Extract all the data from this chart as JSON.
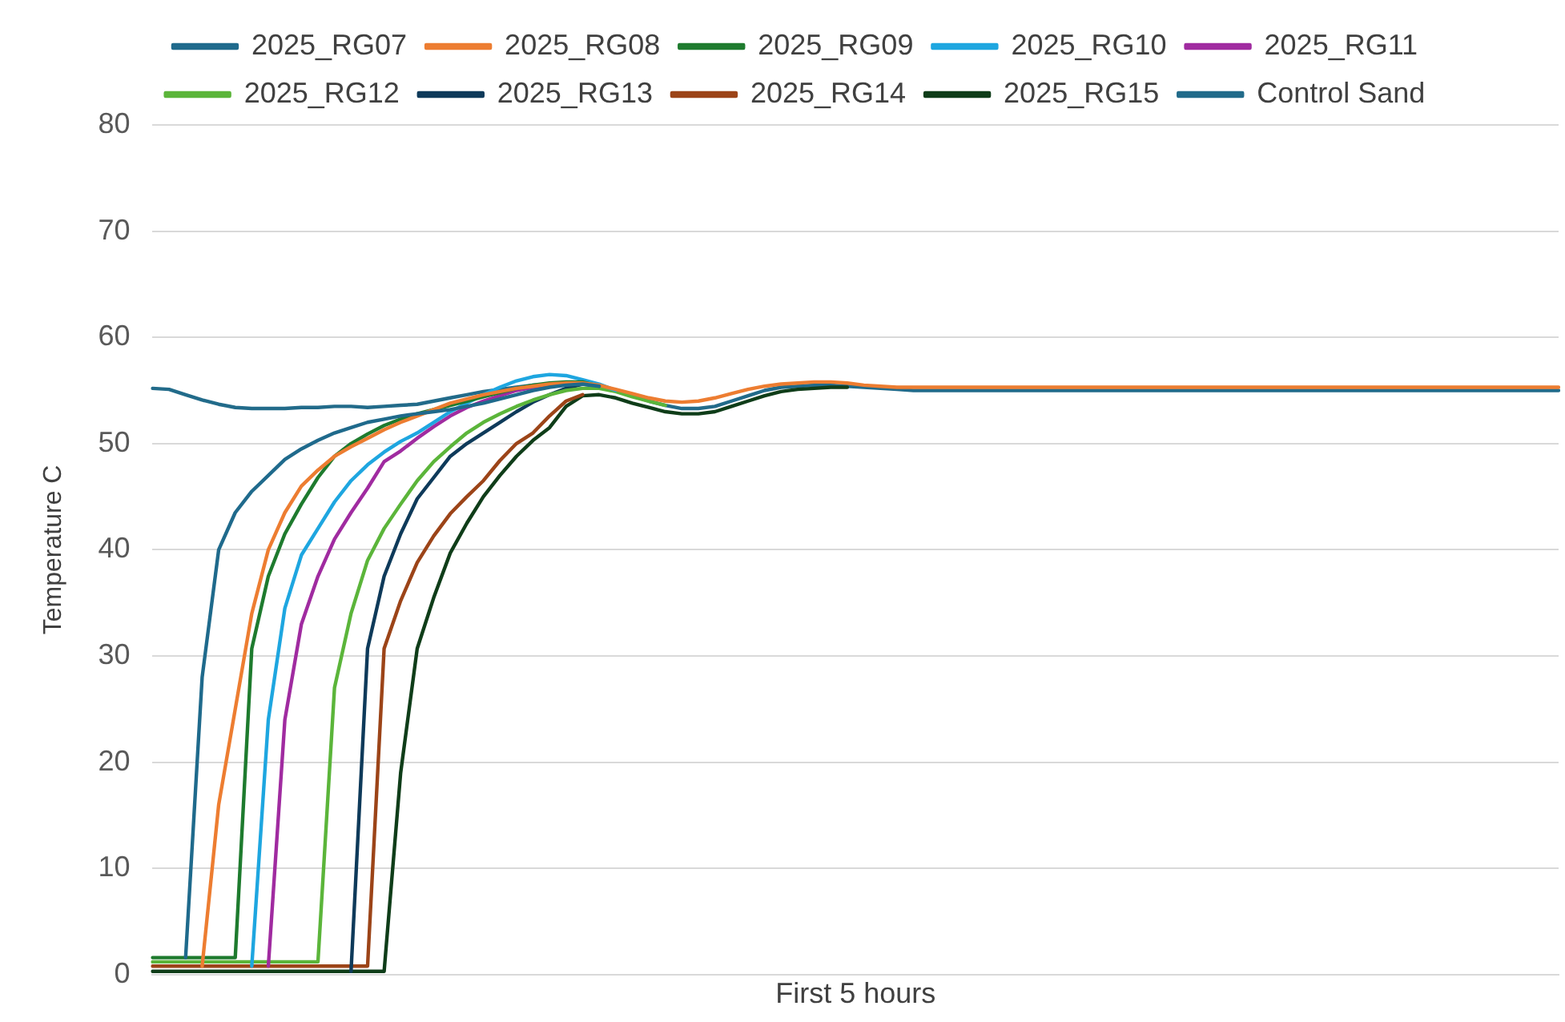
{
  "chart_data": {
    "type": "line",
    "xlabel": "First 5 hours",
    "ylabel": "Temperature C",
    "categories": [
      null,
      null,
      null,
      null,
      null,
      null,
      null,
      null,
      null,
      null,
      null,
      null,
      null,
      null,
      null,
      null,
      null,
      null,
      null,
      null,
      null,
      null,
      null,
      null,
      null,
      null,
      null,
      null,
      null,
      null,
      null,
      null,
      null,
      null,
      null,
      null,
      null,
      null,
      null,
      null,
      null,
      null,
      null,
      null,
      null,
      null,
      null,
      null,
      null,
      null,
      null,
      null,
      null,
      null,
      null,
      null,
      null,
      null,
      null,
      null,
      null,
      null,
      null,
      null,
      null,
      null,
      null,
      null,
      null,
      null,
      null,
      null,
      null,
      null,
      null,
      null,
      null,
      null,
      null,
      null,
      null,
      null,
      null,
      null,
      null,
      null
    ],
    "ylim": [
      0,
      80
    ],
    "yticks": [
      0,
      10,
      20,
      30,
      40,
      50,
      60,
      70,
      80
    ],
    "grid": "y",
    "legend": "top",
    "marker": "none",
    "line_style": "solid",
    "series": [
      {
        "name": "2025_RG07",
        "color": "#1f6a8c",
        "values": [
          null,
          null,
          1.6,
          28,
          40,
          43.5,
          45.5,
          47,
          48.5,
          49.5,
          50.3,
          51,
          51.5,
          52,
          52.3,
          52.6,
          52.8,
          53,
          53.2,
          53.5,
          53.8,
          54.2,
          54.6,
          55,
          55.3,
          55.5,
          55.6,
          55.4,
          null,
          null,
          null,
          null,
          null,
          null,
          null,
          null,
          null,
          null,
          null,
          null,
          null,
          null,
          null,
          null,
          null,
          null,
          null,
          null,
          null,
          null,
          null,
          null,
          null,
          null,
          null,
          null,
          null,
          null,
          null,
          null,
          null,
          null,
          null,
          null,
          null,
          null,
          null,
          null,
          null,
          null,
          null,
          null,
          null,
          null,
          null,
          null,
          null,
          null,
          null,
          null,
          null,
          null,
          null,
          null,
          null,
          null
        ]
      },
      {
        "name": "2025_RG08",
        "color": "#ed7d31",
        "values": [
          null,
          null,
          null,
          0.8,
          16,
          25,
          34,
          40,
          43.5,
          46,
          47.5,
          48.8,
          49.7,
          50.5,
          51.3,
          52,
          52.6,
          53.2,
          53.8,
          54.2,
          54.6,
          54.9,
          55.2,
          55.4,
          55.6,
          55.7,
          55.7,
          55.5,
          55.1,
          54.7,
          54.3,
          54.0,
          53.9,
          54.0,
          54.3,
          54.7,
          55.1,
          55.4,
          55.6,
          55.7,
          55.8,
          55.8,
          55.7,
          55.5,
          55.4,
          55.3,
          55.3,
          55.3,
          55.3,
          55.3,
          55.3,
          55.3,
          55.3,
          55.3,
          55.3,
          55.3,
          55.3,
          55.3,
          55.3,
          55.3,
          55.3,
          55.3,
          55.3,
          55.3,
          55.3,
          55.3,
          55.3,
          55.3,
          55.3,
          55.3,
          55.3,
          55.3,
          55.3,
          55.3,
          55.3,
          55.3,
          55.3,
          55.3,
          55.3,
          55.3,
          55.3,
          55.3,
          55.3,
          55.3,
          55.3,
          55.3
        ]
      },
      {
        "name": "2025_RG09",
        "color": "#1e7b2e",
        "values": [
          1.6,
          1.6,
          1.6,
          1.6,
          1.6,
          1.6,
          30.7,
          37.5,
          41.5,
          44.3,
          46.8,
          48.8,
          50,
          50.9,
          51.7,
          52.3,
          52.8,
          53.2,
          53.6,
          54,
          54.4,
          54.8,
          55.2,
          55.5,
          55.7,
          55.8,
          55.8,
          55.4,
          null,
          null,
          null,
          null,
          null,
          null,
          null,
          null,
          null,
          null,
          null,
          null,
          null,
          null,
          null,
          null,
          null,
          null,
          null,
          null,
          null,
          null,
          null,
          null,
          null,
          null,
          null,
          null,
          null,
          null,
          null,
          null,
          null,
          null,
          null,
          null,
          null,
          null,
          null,
          null,
          null,
          null,
          null,
          null,
          null,
          null,
          null,
          null,
          null,
          null,
          null,
          null,
          null,
          null,
          null,
          null,
          null,
          null
        ]
      },
      {
        "name": "2025_RG10",
        "color": "#1ea6e0",
        "values": [
          null,
          null,
          null,
          null,
          null,
          null,
          0.8,
          24,
          34.5,
          39.5,
          42,
          44.5,
          46.5,
          48,
          49.2,
          50.2,
          51,
          52,
          53,
          53.8,
          54.6,
          55.3,
          55.9,
          56.3,
          56.5,
          56.4,
          56.0,
          55.6,
          55.0,
          null,
          null,
          null,
          null,
          null,
          null,
          null,
          null,
          null,
          null,
          null,
          null,
          null,
          null,
          null,
          null,
          null,
          null,
          null,
          null,
          null,
          null,
          null,
          null,
          null,
          null,
          null,
          null,
          null,
          null,
          null,
          null,
          null,
          null,
          null,
          null,
          null,
          null,
          null,
          null,
          null,
          null,
          null,
          null,
          null,
          null,
          null,
          null,
          null,
          null,
          null,
          null,
          null,
          null,
          null,
          null,
          null
        ]
      },
      {
        "name": "2025_RG11",
        "color": "#a02ba0",
        "values": [
          null,
          null,
          null,
          null,
          null,
          null,
          null,
          0.8,
          24,
          33,
          37.5,
          41,
          43.5,
          45.8,
          48.3,
          49.3,
          50.5,
          51.6,
          52.6,
          53.4,
          54,
          54.5,
          55,
          55.3,
          55.5,
          null,
          null,
          null,
          null,
          null,
          null,
          null,
          null,
          null,
          null,
          null,
          null,
          null,
          null,
          null,
          null,
          null,
          null,
          null,
          null,
          null,
          null,
          null,
          null,
          null,
          null,
          null,
          null,
          null,
          null,
          null,
          null,
          null,
          null,
          null,
          null,
          null,
          null,
          null,
          null,
          null,
          null,
          null,
          null,
          null,
          null,
          null,
          null,
          null,
          null,
          null,
          null,
          null,
          null,
          null,
          null,
          null,
          null,
          null,
          null,
          null
        ]
      },
      {
        "name": "2025_RG12",
        "color": "#5bb53a",
        "values": [
          1.2,
          1.2,
          1.2,
          1.2,
          1.2,
          1.2,
          1.2,
          1.2,
          1.2,
          1.2,
          1.2,
          27,
          34,
          39,
          42,
          44.3,
          46.5,
          48.3,
          49.7,
          51,
          52,
          52.8,
          53.5,
          54.1,
          54.6,
          55,
          55.2,
          55.2,
          54.9,
          54.4,
          54.0,
          53.6,
          null,
          null,
          null,
          null,
          null,
          null,
          null,
          null,
          null,
          null,
          null,
          null,
          null,
          null,
          null,
          null,
          null,
          null,
          null,
          null,
          null,
          null,
          null,
          null,
          null,
          null,
          null,
          null,
          null,
          null,
          null,
          null,
          null,
          null,
          null,
          null,
          null,
          null,
          null,
          null,
          null,
          null,
          null,
          null,
          null,
          null,
          null,
          null,
          null,
          null,
          null,
          null,
          null,
          null
        ]
      },
      {
        "name": "2025_RG13",
        "color": "#0e3a5a",
        "values": [
          null,
          null,
          null,
          null,
          null,
          null,
          null,
          null,
          null,
          null,
          null,
          null,
          0.3,
          30.7,
          37.5,
          41.5,
          44.8,
          46.8,
          48.8,
          50,
          51,
          52,
          53,
          53.9,
          54.6,
          55.2,
          55.6,
          55.4,
          null,
          null,
          null,
          null,
          null,
          null,
          null,
          null,
          null,
          null,
          null,
          null,
          null,
          null,
          null,
          null,
          null,
          null,
          null,
          null,
          null,
          null,
          null,
          null,
          null,
          null,
          null,
          null,
          null,
          null,
          null,
          null,
          null,
          null,
          null,
          null,
          null,
          null,
          null,
          null,
          null,
          null,
          null,
          null,
          null,
          null,
          null,
          null,
          null,
          null,
          null,
          null,
          null,
          null,
          null,
          null,
          null,
          null
        ]
      },
      {
        "name": "2025_RG14",
        "color": "#9c4418",
        "values": [
          0.8,
          0.8,
          0.8,
          0.8,
          0.8,
          0.8,
          0.8,
          0.8,
          0.8,
          0.8,
          0.8,
          0.8,
          0.8,
          0.8,
          30.7,
          35.2,
          38.8,
          41.3,
          43.4,
          45,
          46.5,
          48.4,
          50,
          51,
          52.6,
          54,
          54.6,
          null,
          null,
          null,
          null,
          null,
          null,
          null,
          null,
          null,
          null,
          null,
          null,
          null,
          null,
          null,
          null,
          null,
          null,
          null,
          null,
          null,
          null,
          null,
          null,
          null,
          null,
          null,
          null,
          null,
          null,
          null,
          null,
          null,
          null,
          null,
          null,
          null,
          null,
          null,
          null,
          null,
          null,
          null,
          null,
          null,
          null,
          null,
          null,
          null,
          null,
          null,
          null,
          null,
          null,
          null,
          null,
          null,
          null,
          null
        ]
      },
      {
        "name": "2025_RG15",
        "color": "#0f3d19",
        "values": [
          0.3,
          0.3,
          0.3,
          0.3,
          0.3,
          0.3,
          0.3,
          0.3,
          0.3,
          0.3,
          0.3,
          0.3,
          0.3,
          0.3,
          0.3,
          19,
          30.7,
          35.5,
          39.7,
          42.5,
          45,
          47,
          48.8,
          50.3,
          51.5,
          53.5,
          54.5,
          54.6,
          54.3,
          53.8,
          53.4,
          53.0,
          52.8,
          52.8,
          53.0,
          53.5,
          54.0,
          54.5,
          54.9,
          55.1,
          55.2,
          55.3,
          55.3,
          null,
          null,
          null,
          null,
          null,
          null,
          null,
          null,
          null,
          null,
          null,
          null,
          null,
          null,
          null,
          null,
          null,
          null,
          null,
          null,
          null,
          null,
          null,
          null,
          null,
          null,
          null,
          null,
          null,
          null,
          null,
          null,
          null,
          null,
          null,
          null,
          null,
          null,
          null,
          null,
          null,
          null,
          null
        ]
      },
      {
        "name": "Control Sand",
        "color": "#226b8a",
        "values": [
          55.2,
          55.1,
          54.6,
          54.1,
          53.7,
          53.4,
          53.3,
          53.3,
          53.3,
          53.4,
          53.4,
          53.5,
          53.5,
          53.4,
          53.5,
          53.6,
          53.7,
          54.0,
          54.3,
          54.6,
          54.9,
          55.1,
          55.3,
          55.5,
          55.6,
          55.7,
          55.7,
          55.4,
          55.0,
          54.5,
          54.0,
          53.6,
          53.3,
          53.3,
          53.5,
          54.0,
          54.5,
          55.0,
          55.3,
          55.4,
          55.5,
          55.5,
          55.4,
          55.3,
          55.2,
          55.1,
          55,
          55,
          55,
          55,
          55,
          55,
          55,
          55,
          55,
          55,
          55,
          55,
          55,
          55,
          55,
          55,
          55,
          55,
          55,
          55,
          55,
          55,
          55,
          55,
          55,
          55,
          55,
          55,
          55,
          55,
          55,
          55,
          55,
          55,
          55,
          55,
          55,
          55,
          55,
          55
        ]
      }
    ]
  }
}
